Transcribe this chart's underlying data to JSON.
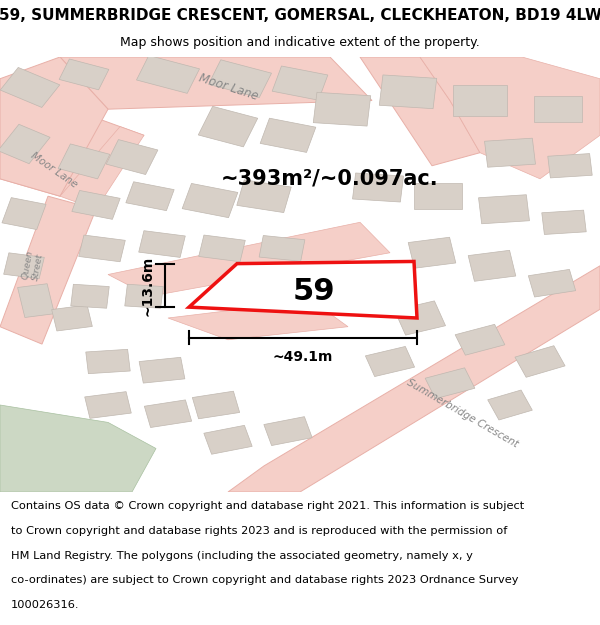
{
  "title": "59, SUMMERBRIDGE CRESCENT, GOMERSAL, CLECKHEATON, BD19 4LW",
  "subtitle": "Map shows position and indicative extent of the property.",
  "area_text": "~393m²/~0.097ac.",
  "width_label": "~49.1m",
  "height_label": "~13.6m",
  "plot_number": "59",
  "footer_line1": "Contains OS data © Crown copyright and database right 2021. This information is subject",
  "footer_line2": "to Crown copyright and database rights 2023 and is reproduced with the permission of",
  "footer_line3": "HM Land Registry. The polygons (including the associated geometry, namely x, y",
  "footer_line4": "co-ordinates) are subject to Crown copyright and database rights 2023 Ordnance Survey",
  "footer_line5": "100026316.",
  "map_bg": "#f8f4f0",
  "plot_fill": "#ffffff",
  "plot_edge": "#ee1111",
  "road_fill": "#f5cfc8",
  "road_outline": "#e8b0a8",
  "building_fill": "#d8d0c8",
  "building_outline": "#c0b8b0",
  "green_fill": "#ccd8c4",
  "green_outline": "#a8c0a0",
  "title_fontsize": 11,
  "subtitle_fontsize": 9,
  "footer_fontsize": 8.2,
  "area_fontsize": 15,
  "plot_label_fontsize": 22,
  "dim_fontsize": 10
}
